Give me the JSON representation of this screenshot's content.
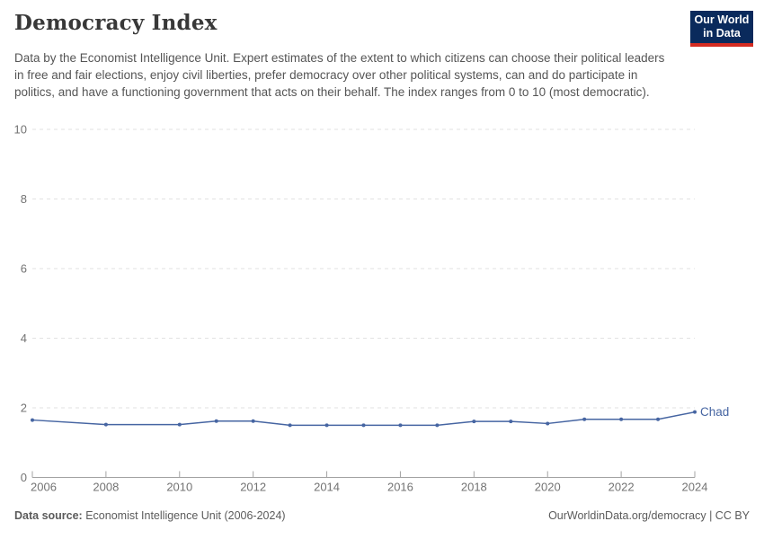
{
  "header": {
    "title": "Democracy Index",
    "subtitle": "Data by the Economist Intelligence Unit. Expert estimates of the extent to which citizens can choose their political leaders in free and fair elections, enjoy civil liberties, prefer democracy over other political systems, can and do participate in politics, and have a functioning government that acts on their behalf. The index ranges from 0 to 10 (most democratic).",
    "logo": {
      "line1": "Our World",
      "line2": "in Data",
      "bg_color": "#0a2a5c",
      "accent_color": "#d42b21"
    }
  },
  "chart_data": {
    "type": "line",
    "title": "Democracy Index",
    "xlabel": "",
    "ylabel": "",
    "xlim": [
      2006,
      2024
    ],
    "ylim": [
      0,
      10
    ],
    "x_ticks": [
      2006,
      2008,
      2010,
      2012,
      2014,
      2016,
      2018,
      2020,
      2022,
      2024
    ],
    "y_ticks": [
      0,
      2,
      4,
      6,
      8,
      10
    ],
    "grid": "horizontal-dashed",
    "legend_position": "end-of-line-label",
    "series": [
      {
        "name": "Chad",
        "color": "#4665a2",
        "x": [
          2006,
          2008,
          2010,
          2011,
          2012,
          2013,
          2014,
          2015,
          2016,
          2017,
          2018,
          2019,
          2020,
          2021,
          2022,
          2023,
          2024
        ],
        "values": [
          1.65,
          1.52,
          1.52,
          1.62,
          1.62,
          1.5,
          1.5,
          1.5,
          1.5,
          1.5,
          1.61,
          1.61,
          1.55,
          1.67,
          1.67,
          1.67,
          1.88
        ]
      }
    ],
    "colors": {
      "gridline": "#e2e2e2",
      "axis": "#a3a3a3",
      "tick_label": "#737373"
    }
  },
  "footer": {
    "source_label": "Data source:",
    "source_text": " Economist Intelligence Unit (2006-2024)",
    "link_text": "OurWorldinData.org/democracy",
    "separator": " | ",
    "license_text": "CC BY"
  }
}
